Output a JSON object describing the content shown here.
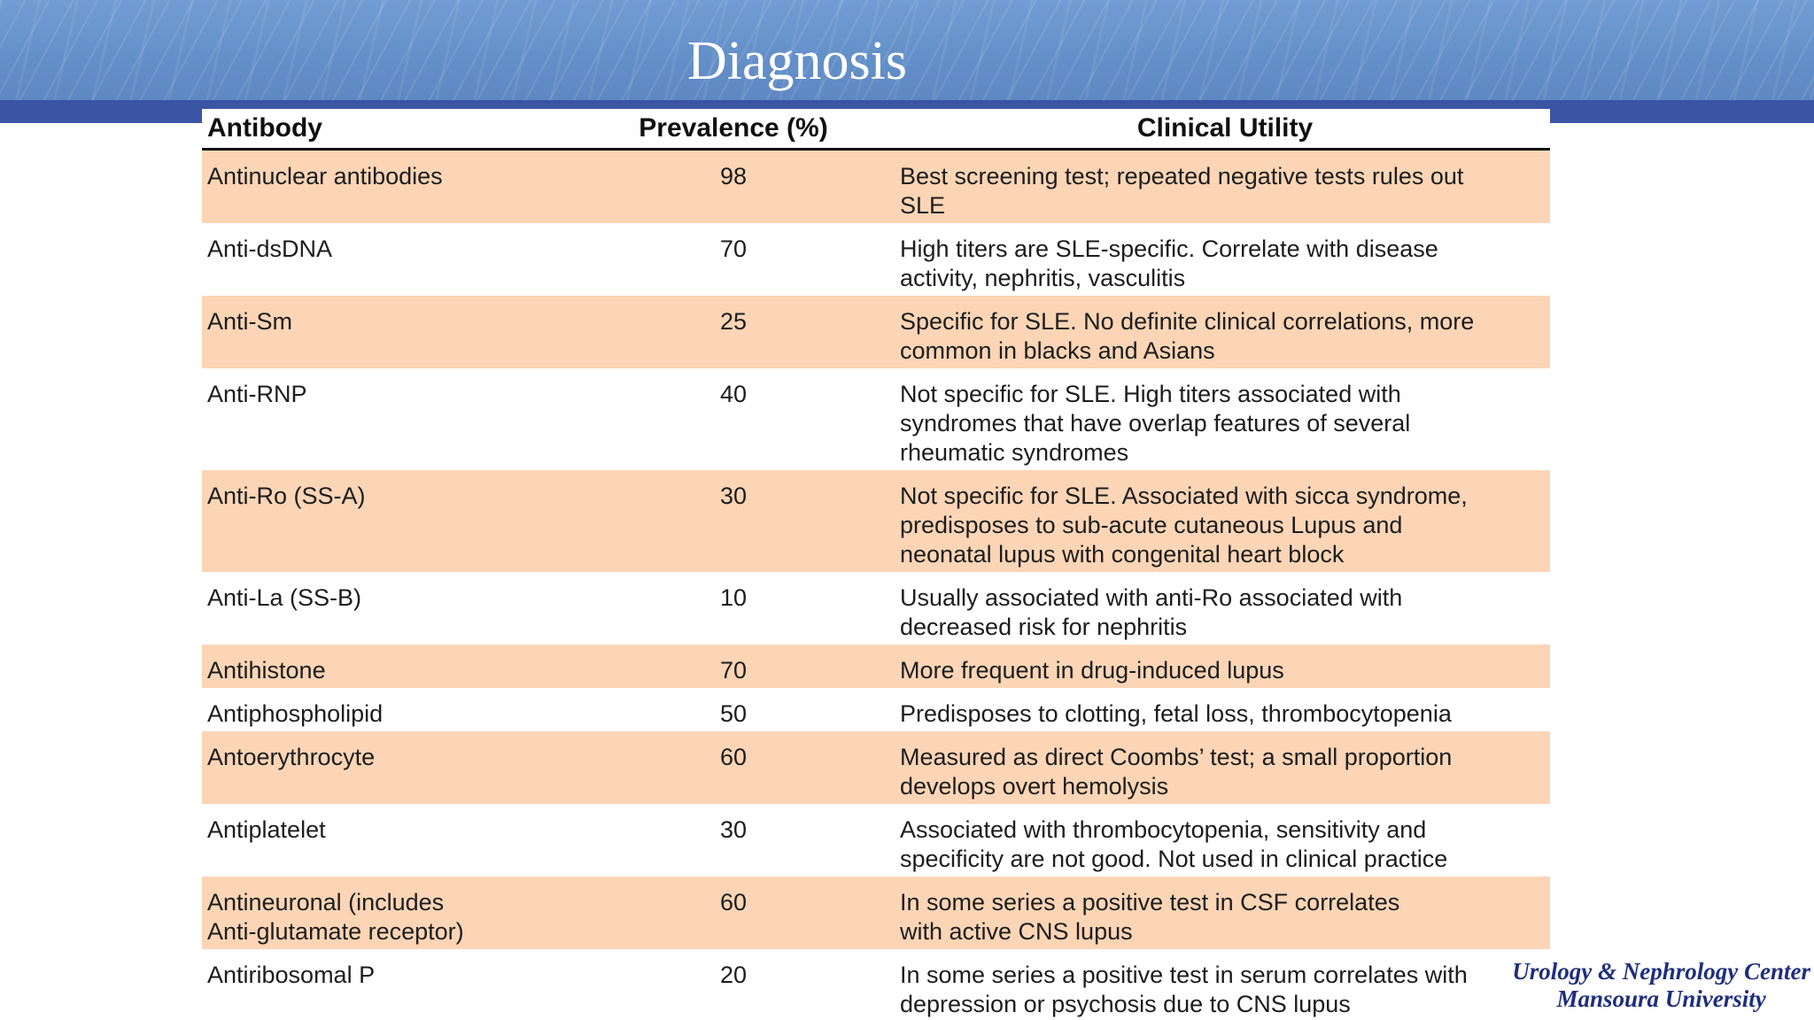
{
  "slide": {
    "title": "Diagnosis"
  },
  "table": {
    "headers": {
      "antibody": "Antibody",
      "prevalence": "Prevalence (%)",
      "clinical": "Clinical Utility"
    },
    "rows": [
      {
        "antibody": "Antinuclear antibodies",
        "prevalence": "98",
        "clinical": "Best screening test; repeated negative tests rules out\nSLE"
      },
      {
        "antibody": "Anti-dsDNA",
        "prevalence": "70",
        "clinical": "High titers are SLE-specific. Correlate with disease\nactivity, nephritis, vasculitis"
      },
      {
        "antibody": "Anti-Sm",
        "prevalence": "25",
        "clinical": "Specific for SLE. No definite clinical correlations, more\ncommon in blacks and Asians"
      },
      {
        "antibody": "Anti-RNP",
        "prevalence": "40",
        "clinical": "Not specific for SLE. High titers associated with\nsyndromes that have overlap features of several\nrheumatic syndromes"
      },
      {
        "antibody": "Anti-Ro (SS-A)",
        "prevalence": "30",
        "clinical": "Not specific for SLE. Associated with sicca syndrome,\npredisposes to sub-acute cutaneous Lupus and\nneonatal lupus with congenital heart block"
      },
      {
        "antibody": "Anti-La (SS-B)",
        "prevalence": "10",
        "clinical": "Usually associated with anti-Ro associated with\ndecreased risk for nephritis"
      },
      {
        "antibody": "Antihistone",
        "prevalence": "70",
        "clinical": "More frequent in drug-induced lupus"
      },
      {
        "antibody": "Antiphospholipid",
        "prevalence": "50",
        "clinical": "Predisposes to clotting, fetal loss, thrombocytopenia"
      },
      {
        "antibody": "Antoerythrocyte",
        "prevalence": "60",
        "clinical": "Measured as direct Coombs’ test; a small proportion\ndevelops overt hemolysis"
      },
      {
        "antibody": "Antiplatelet",
        "prevalence": "30",
        "clinical": "Associated with thrombocytopenia, sensitivity and\nspecificity are not good. Not used in clinical practice"
      },
      {
        "antibody": "Antineuronal (includes\nAnti-glutamate receptor)",
        "prevalence": "60",
        "clinical": "In some series a positive test in CSF correlates\nwith active CNS lupus"
      },
      {
        "antibody": "Antiribosomal P",
        "prevalence": "20",
        "clinical": "In some series a positive test in serum correlates with\ndepression or psychosis due to CNS lupus"
      }
    ]
  },
  "footer": {
    "line1": "Urology & Nephrology Center",
    "line2": "Mansoura  University"
  },
  "colors": {
    "band_blue": "#6490c9",
    "accent_bar_blue": "#3a55a4",
    "row_shade_peach": "#fbd5b5",
    "footer_navy": "#1e2e7e"
  }
}
